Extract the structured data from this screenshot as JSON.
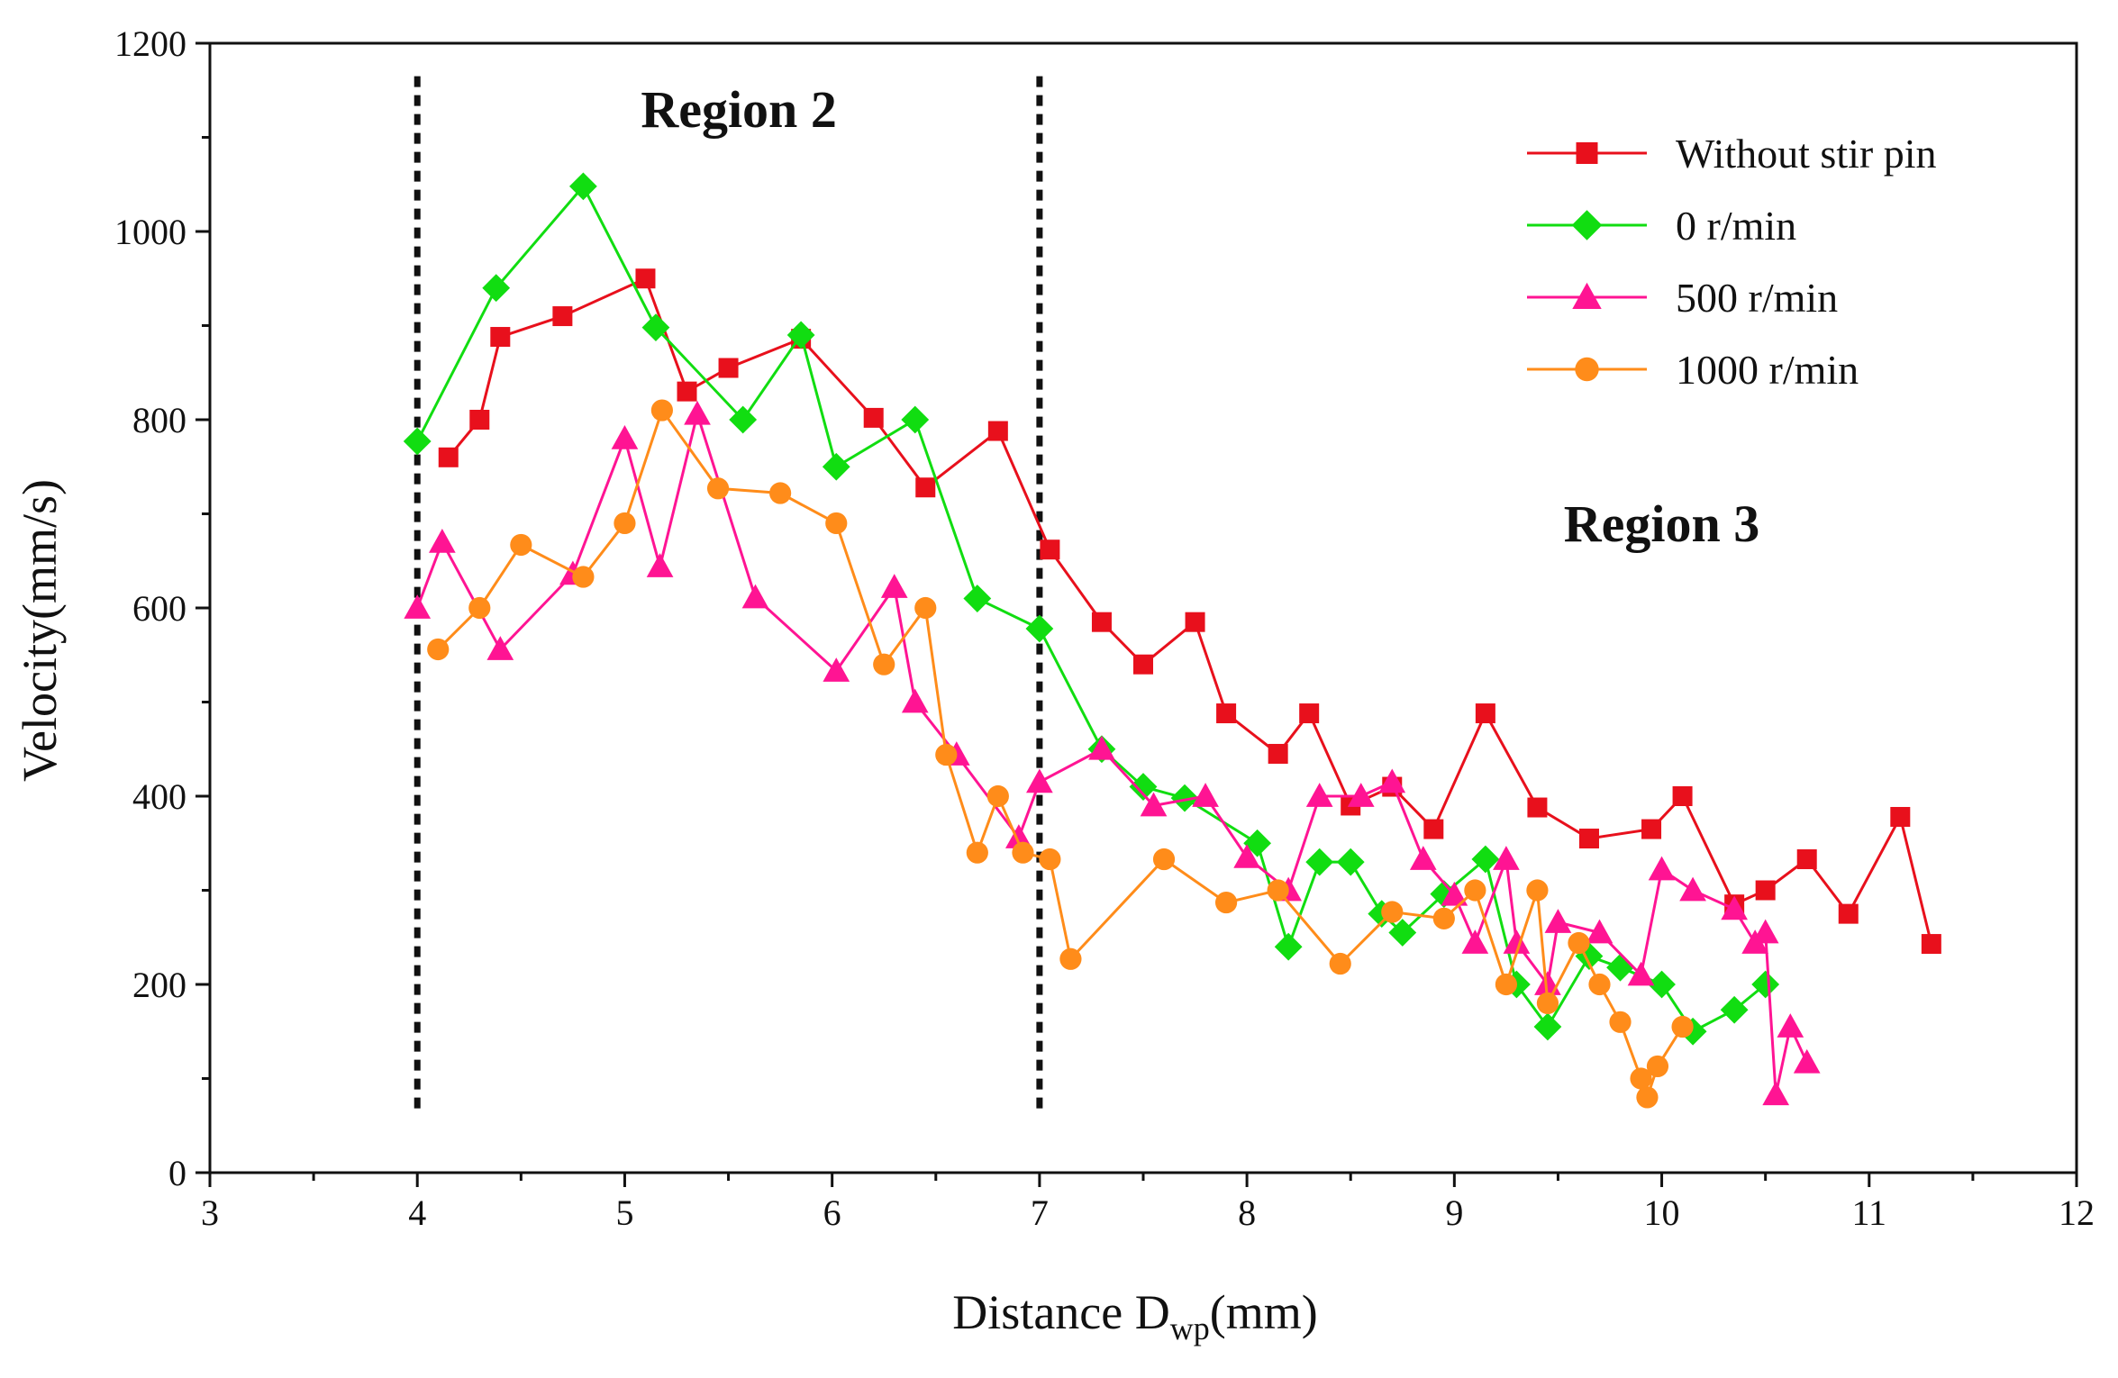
{
  "chart_data": {
    "type": "line",
    "title": "",
    "xlabel": {
      "main": "Distance D",
      "sub": "wp",
      "unit": "(mm)"
    },
    "ylabel": "Velocity(mm/s)",
    "xlim": [
      3,
      12
    ],
    "ylim": [
      0,
      1200
    ],
    "x_ticks": [
      3,
      4,
      5,
      6,
      7,
      8,
      9,
      10,
      11,
      12
    ],
    "y_ticks": [
      0,
      200,
      400,
      600,
      800,
      1000,
      1200
    ],
    "grid": false,
    "legend_position": "top-right",
    "region_lines_x": [
      4,
      7
    ],
    "annotations": [
      {
        "text": "Region 2",
        "x": 5.55,
        "y": 1130
      },
      {
        "text": "Region 3",
        "x": 10.0,
        "y": 690
      }
    ],
    "series": [
      {
        "name": "Without stir pin",
        "color": "#e8101c",
        "marker": "square",
        "x": [
          4.15,
          4.3,
          4.4,
          4.7,
          5.1,
          5.3,
          5.5,
          5.85,
          6.2,
          6.45,
          6.8,
          7.05,
          7.3,
          7.5,
          7.75,
          7.9,
          8.15,
          8.3,
          8.5,
          8.7,
          8.9,
          9.15,
          9.4,
          9.65,
          9.95,
          10.1,
          10.35,
          10.5,
          10.7,
          10.9,
          11.15,
          11.3
        ],
        "y": [
          760,
          800,
          888,
          910,
          950,
          830,
          855,
          886,
          802,
          728,
          788,
          662,
          585,
          540,
          585,
          488,
          445,
          488,
          390,
          410,
          365,
          488,
          388,
          355,
          365,
          400,
          285,
          300,
          333,
          275,
          378,
          243
        ]
      },
      {
        "name": "0 r/min",
        "color": "#11dd11",
        "marker": "diamond",
        "x": [
          4.0,
          4.38,
          4.8,
          5.15,
          5.57,
          5.85,
          6.02,
          6.4,
          6.7,
          7.0,
          7.3,
          7.5,
          7.7,
          8.05,
          8.2,
          8.35,
          8.5,
          8.65,
          8.75,
          8.95,
          9.15,
          9.3,
          9.45,
          9.65,
          9.8,
          10.0,
          10.15,
          10.35,
          10.5
        ],
        "y": [
          777,
          940,
          1048,
          898,
          800,
          890,
          750,
          800,
          610,
          578,
          450,
          410,
          398,
          350,
          240,
          330,
          330,
          275,
          255,
          296,
          333,
          200,
          155,
          230,
          218,
          200,
          150,
          173,
          200
        ]
      },
      {
        "name": "500 r/min",
        "color": "#ff1493",
        "marker": "triangle",
        "x": [
          4.0,
          4.12,
          4.4,
          4.75,
          5.0,
          5.17,
          5.35,
          5.63,
          6.02,
          6.3,
          6.4,
          6.6,
          6.9,
          7.0,
          7.3,
          7.55,
          7.8,
          8.0,
          8.2,
          8.35,
          8.55,
          8.7,
          8.85,
          9.0,
          9.1,
          9.25,
          9.3,
          9.45,
          9.5,
          9.7,
          9.9,
          10.0,
          10.15,
          10.35,
          10.45,
          10.5,
          10.55,
          10.62,
          10.7
        ],
        "y": [
          600,
          670,
          556,
          636,
          780,
          644,
          806,
          611,
          533,
          622,
          500,
          444,
          356,
          415,
          450,
          390,
          400,
          335,
          300,
          400,
          400,
          415,
          333,
          295,
          244,
          333,
          244,
          200,
          266,
          255,
          210,
          322,
          300,
          280,
          244,
          255,
          83,
          155,
          117
        ]
      },
      {
        "name": "1000 r/min",
        "color": "#ff8c1a",
        "marker": "circle",
        "x": [
          4.1,
          4.3,
          4.5,
          4.8,
          5.0,
          5.18,
          5.45,
          5.75,
          6.02,
          6.25,
          6.45,
          6.55,
          6.7,
          6.8,
          6.92,
          7.05,
          7.15,
          7.6,
          7.9,
          8.15,
          8.45,
          8.7,
          8.95,
          9.1,
          9.25,
          9.4,
          9.45,
          9.6,
          9.7,
          9.8,
          9.9,
          9.93,
          9.98,
          10.1
        ],
        "y": [
          556,
          600,
          667,
          633,
          690,
          810,
          727,
          722,
          690,
          540,
          600,
          444,
          340,
          400,
          340,
          333,
          227,
          333,
          287,
          300,
          222,
          277,
          270,
          300,
          200,
          300,
          180,
          244,
          200,
          160,
          100,
          80,
          113,
          155
        ]
      }
    ]
  }
}
